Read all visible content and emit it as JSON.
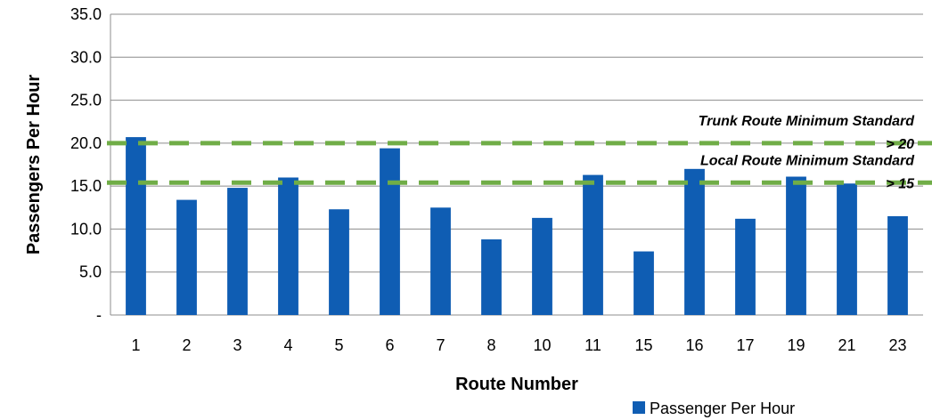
{
  "chart_data": {
    "type": "bar",
    "xlabel": "Route Number",
    "ylabel": "Passengers Per Hour",
    "ylim": [
      0,
      35
    ],
    "yticks": [
      0,
      5,
      10,
      15,
      20,
      25,
      30,
      35
    ],
    "ytick_labels": [
      "-",
      "5.0",
      "10.0",
      "15.0",
      "20.0",
      "25.0",
      "30.0",
      "35.0"
    ],
    "grid": "horizontal",
    "legend_position": "bottom-right",
    "categories": [
      "1",
      "2",
      "3",
      "4",
      "5",
      "6",
      "7",
      "8",
      "10",
      "11",
      "15",
      "16",
      "17",
      "19",
      "21",
      "23"
    ],
    "series": [
      {
        "name": "Passenger Per Hour",
        "color": "#0f5db3",
        "values": [
          20.7,
          13.4,
          14.8,
          16.0,
          12.3,
          19.4,
          12.5,
          8.8,
          11.3,
          16.3,
          7.4,
          17.0,
          11.2,
          16.1,
          15.3,
          11.5
        ]
      }
    ],
    "reference_lines": [
      {
        "value": 20,
        "label": "Trunk Route Minimum Standard",
        "sublabel": "> 20",
        "color": "#70ad47"
      },
      {
        "value": 15.4,
        "label": "Local Route Minimum Standard",
        "sublabel": "> 15",
        "color": "#70ad47"
      }
    ]
  }
}
